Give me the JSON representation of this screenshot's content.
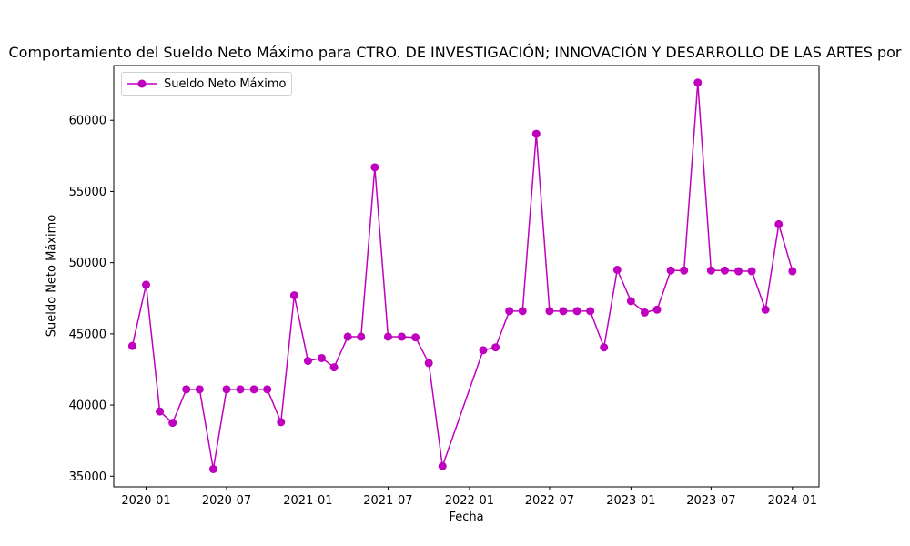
{
  "chart_data": {
    "type": "line",
    "title": "Comportamiento del Sueldo Neto Máximo para CTRO. DE INVESTIGACIÓN; INNOVACIÓN Y DESARROLLO DE LAS ARTES por",
    "xlabel": "Fecha",
    "ylabel": "Sueldo Neto Máximo",
    "color": "#bf00bf",
    "grid": false,
    "legend_position": "top-left",
    "xlim": [
      "2019-10-20",
      "2024-03-01"
    ],
    "ylim": [
      34250,
      63850
    ],
    "x_ticks": [
      "2020-01",
      "2020-07",
      "2021-01",
      "2021-07",
      "2022-01",
      "2022-07",
      "2023-01",
      "2023-07",
      "2024-01"
    ],
    "y_ticks": [
      35000,
      40000,
      45000,
      50000,
      55000,
      60000
    ],
    "series": [
      {
        "name": "Sueldo Neto Máximo",
        "x": [
          "2019-12-01",
          "2020-01-01",
          "2020-02-01",
          "2020-03-01",
          "2020-04-01",
          "2020-05-01",
          "2020-06-01",
          "2020-07-01",
          "2020-08-01",
          "2020-09-01",
          "2020-10-01",
          "2020-11-01",
          "2020-12-01",
          "2021-01-01",
          "2021-02-01",
          "2021-03-01",
          "2021-04-01",
          "2021-05-01",
          "2021-06-01",
          "2021-07-01",
          "2021-08-01",
          "2021-09-01",
          "2021-10-01",
          "2021-11-01",
          "2022-02-01",
          "2022-03-01",
          "2022-04-01",
          "2022-05-01",
          "2022-06-01",
          "2022-07-01",
          "2022-08-01",
          "2022-09-01",
          "2022-10-01",
          "2022-11-01",
          "2022-12-01",
          "2023-01-01",
          "2023-02-01",
          "2023-03-01",
          "2023-04-01",
          "2023-05-01",
          "2023-06-01",
          "2023-07-01",
          "2023-08-01",
          "2023-09-01",
          "2023-10-01",
          "2023-11-01",
          "2023-12-01",
          "2024-01-01"
        ],
        "values": [
          44150,
          48450,
          39550,
          38750,
          41100,
          41100,
          35500,
          41100,
          41100,
          41100,
          41100,
          38800,
          47700,
          43100,
          43300,
          42650,
          44800,
          44800,
          56700,
          44800,
          44800,
          44750,
          42950,
          35700,
          43850,
          44050,
          46600,
          46600,
          59050,
          46600,
          46600,
          46600,
          46600,
          44050,
          49500,
          47300,
          46500,
          46700,
          49450,
          49450,
          62650,
          49450,
          49450,
          49400,
          49400,
          46700,
          52700,
          49400
        ]
      }
    ]
  }
}
